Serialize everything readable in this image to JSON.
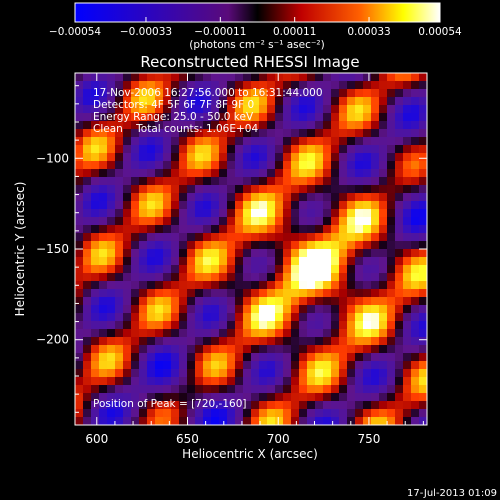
{
  "chart_data": {
    "type": "heatmap",
    "title": "Reconstructed RHESSI Image",
    "xlabel": "Heliocentric X (arcsec)",
    "ylabel": "Heliocentric Y (arcsec)",
    "xlim": [
      588,
      782
    ],
    "ylim": [
      -247,
      -53
    ],
    "x_ticks": [
      600,
      650,
      700,
      750
    ],
    "x_tick_labels": [
      "600",
      "650",
      "700",
      "750"
    ],
    "y_ticks": [
      -100,
      -150,
      -200
    ],
    "y_tick_labels": [
      "−100",
      "−150",
      "−200"
    ],
    "colorbar": {
      "min": -0.00054,
      "max": 0.00054,
      "ticks": [
        -0.00054,
        -0.00033,
        -0.00011,
        0.00011,
        0.00033,
        0.00054
      ],
      "tick_labels": [
        "−0.00054",
        "−0.00033",
        "−0.00011",
        "0.00011",
        "0.00033",
        "0.00054"
      ],
      "units_label": "(photons cm⁻² s⁻¹ asec⁻²)"
    },
    "annotations": {
      "time": "17-Nov-2006 16:27:56.000 to 16:31:44.000",
      "detectors": "Detectors: 4F 5F 6F 7F 8F 9F 0",
      "energy": "Energy Range: 25.0 - 50.0 keV",
      "clean": "Clean    Total counts: 1.06E+04",
      "peak": "Position of Peak = [720,-160]"
    },
    "peak": [
      720,
      -160
    ],
    "colors": {
      "low": "#0000ff",
      "zero": "#000000",
      "high": "#ffffff",
      "mid": "#ff0000",
      "warm": "#ffff00"
    }
  },
  "footer": {
    "timestamp": "17-Jul-2013 01:09"
  }
}
